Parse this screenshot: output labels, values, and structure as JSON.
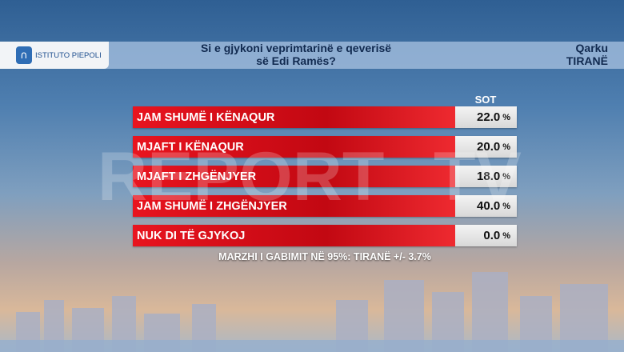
{
  "brand": {
    "logo_text": "ISTITUTO PIEPOLI",
    "watermark": "REPORT TV",
    "watermark_left": "REPORT",
    "watermark_right": "TV"
  },
  "header": {
    "title_line1": "Si e gjykoni veprimtarinë e qeverisë",
    "title_line2": "së Edi Ramës?",
    "region_line1": "Qarku",
    "region_line2": "TIRANË"
  },
  "colors": {
    "bar": "#d90f1a",
    "value_box": "#e6e6e6",
    "header": "#aac3e1"
  },
  "chart_data": {
    "type": "table",
    "column_header": "SOT",
    "categories": [
      "JAM SHUMË I KËNAQUR",
      "MJAFT I KËNAQUR",
      "MJAFT I ZHGËNJYER",
      "JAM SHUMË I ZHGËNJYER",
      "NUK DI TË GJYKOJ"
    ],
    "values": [
      "22.0",
      "20.0",
      "18.0",
      "40.0",
      "0.0"
    ],
    "unit": "%",
    "note": "MARZHI I GABIMIT NË 95%: TIRANË +/- 3.7%"
  }
}
